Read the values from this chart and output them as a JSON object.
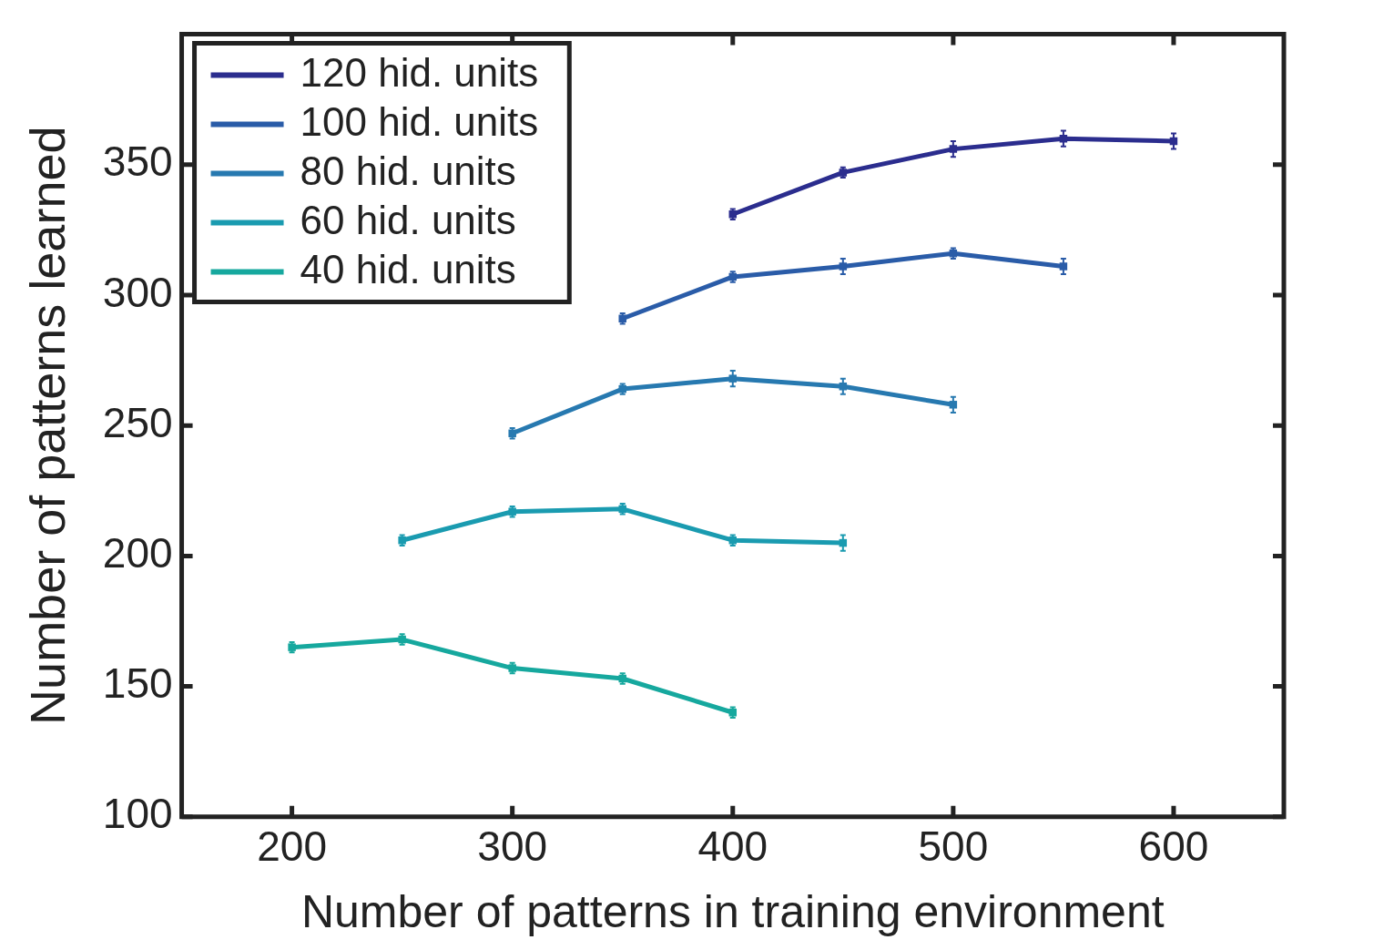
{
  "chart_data": {
    "type": "line",
    "xlabel": "Number of patterns in training environment",
    "ylabel": "Number of patterns learned",
    "xlim": [
      150,
      650
    ],
    "xticks": [
      200,
      300,
      400,
      500,
      600
    ],
    "ylim": [
      100,
      400
    ],
    "yticks": [
      100,
      150,
      200,
      250,
      300,
      350
    ],
    "grid": false,
    "legend": "top left",
    "marker": "square",
    "line_style": "solid",
    "series": [
      {
        "name": "120 hid. units",
        "color": "#2b2d8e",
        "x": [
          400,
          450,
          500,
          550,
          600
        ],
        "values": [
          331,
          347,
          356,
          360,
          359
        ],
        "errors": [
          2,
          2,
          3,
          3,
          3
        ]
      },
      {
        "name": "100 hid. units",
        "color": "#2a5ca8",
        "x": [
          350,
          400,
          450,
          500,
          550
        ],
        "values": [
          291,
          307,
          311,
          316,
          311
        ],
        "errors": [
          2,
          2,
          3,
          2,
          3
        ]
      },
      {
        "name": "80 hid. units",
        "color": "#2779b0",
        "x": [
          300,
          350,
          400,
          450,
          500
        ],
        "values": [
          247,
          264,
          268,
          265,
          258
        ],
        "errors": [
          2,
          2,
          3,
          3,
          3
        ]
      },
      {
        "name": "60 hid. units",
        "color": "#1a9bb0",
        "x": [
          250,
          300,
          350,
          400,
          450
        ],
        "values": [
          206,
          217,
          218,
          206,
          205
        ],
        "errors": [
          2,
          2,
          2,
          2,
          3
        ]
      },
      {
        "name": "40 hid. units",
        "color": "#16a89e",
        "x": [
          200,
          250,
          300,
          350,
          400
        ],
        "values": [
          165,
          168,
          157,
          153,
          140
        ],
        "errors": [
          2,
          2,
          2,
          2,
          2
        ]
      }
    ]
  }
}
